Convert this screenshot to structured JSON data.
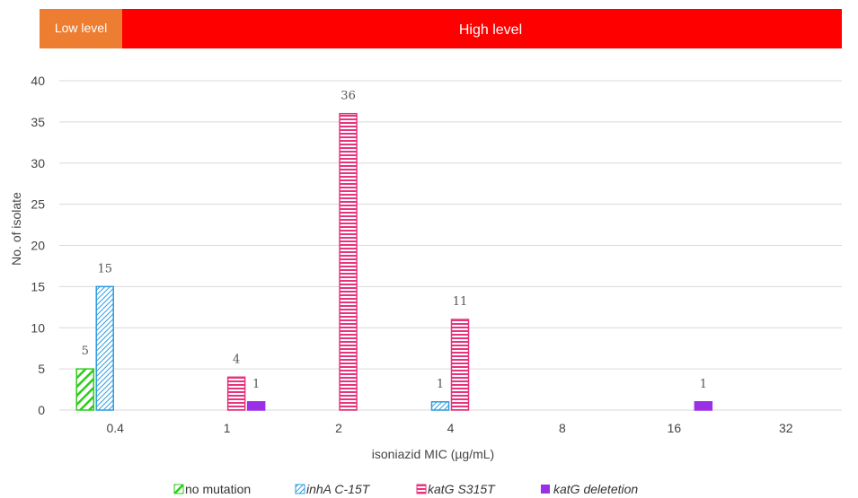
{
  "bands": {
    "low": {
      "label": "Low level",
      "color": "#ED7D31"
    },
    "high": {
      "label": "High level",
      "color": "#FF0000"
    }
  },
  "chart_data": {
    "type": "bar",
    "xlabel": "isoniazid MIC (µg/mL)",
    "ylabel": "No. of isolate",
    "ylim": [
      0,
      40
    ],
    "yticks": [
      0,
      5,
      10,
      15,
      20,
      25,
      30,
      35,
      40
    ],
    "categories": [
      "0.4",
      "1",
      "2",
      "4",
      "8",
      "16",
      "32"
    ],
    "grid": true,
    "legend_position": "bottom",
    "series": [
      {
        "name": "no mutation",
        "italic": false,
        "color": "#2ECC1B",
        "pattern": "diagonal-thick",
        "values": [
          5,
          0,
          0,
          0,
          0,
          0,
          0
        ]
      },
      {
        "name": "inhA C-15T",
        "italic": true,
        "color": "#2E9BE0",
        "pattern": "diagonal-thin",
        "values": [
          15,
          0,
          0,
          1,
          0,
          0,
          0
        ]
      },
      {
        "name": "katG S315T",
        "italic": true,
        "color": "#E8327C",
        "pattern": "horizontal",
        "values": [
          0,
          4,
          36,
          11,
          0,
          0,
          0
        ]
      },
      {
        "name": "katG deletetion",
        "italic": true,
        "color": "#9B30E6",
        "pattern": "solid",
        "values": [
          0,
          1,
          0,
          0,
          0,
          1,
          0
        ]
      }
    ]
  }
}
